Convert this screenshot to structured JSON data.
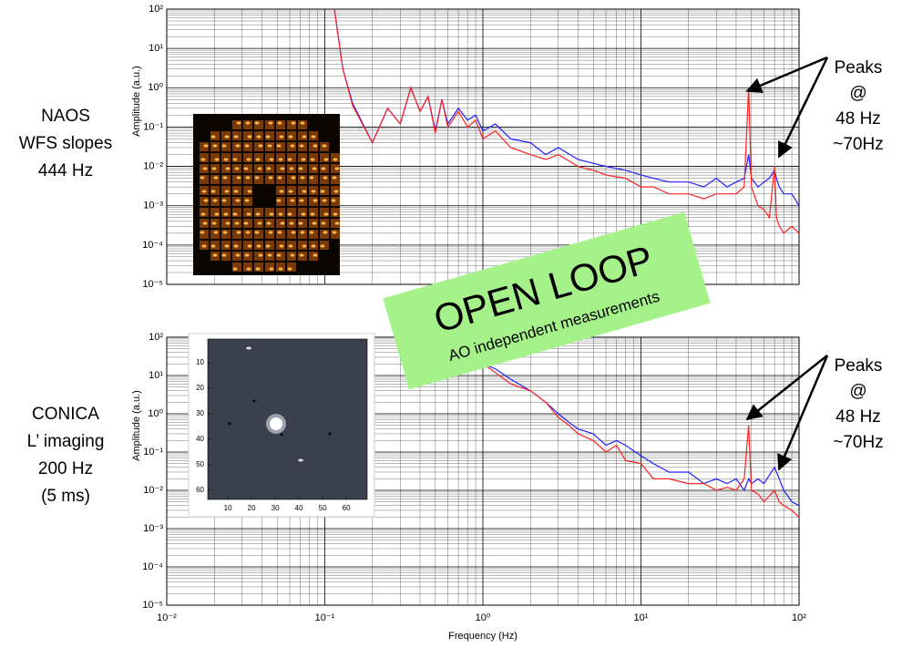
{
  "chart_data": [
    {
      "type": "line",
      "ylabel": "Amplitude (a.u.)",
      "log_x": true,
      "log_y": true,
      "grid": true,
      "xlim": [
        0.01,
        100
      ],
      "ylim": [
        1e-05,
        100
      ],
      "xticks": [
        0.01,
        0.1,
        1,
        10,
        100
      ],
      "yticks": [
        {
          "value": 100,
          "label": "10²"
        },
        {
          "value": 10,
          "label": "10¹"
        },
        {
          "value": 1,
          "label": "10⁰"
        },
        {
          "value": 0.1,
          "label": "10⁻¹"
        },
        {
          "value": 0.01,
          "label": "10⁻²"
        },
        {
          "value": 0.001,
          "label": "10⁻³"
        },
        {
          "value": 0.0001,
          "label": "10⁻⁴"
        },
        {
          "value": 1e-05,
          "label": "10⁻⁵"
        }
      ],
      "x": [
        0.115,
        0.13,
        0.15,
        0.2,
        0.25,
        0.3,
        0.35,
        0.4,
        0.45,
        0.5,
        0.55,
        0.6,
        0.7,
        0.8,
        0.9,
        1,
        1.2,
        1.5,
        2,
        2.5,
        3,
        4,
        5,
        6,
        8,
        10,
        12,
        15,
        20,
        25,
        30,
        35,
        40,
        45,
        48,
        50,
        55,
        60,
        65,
        70,
        72,
        75,
        80,
        90,
        100
      ],
      "series": [
        {
          "color": "#2020ff",
          "values": [
            100,
            3,
            0.4,
            0.04,
            0.3,
            0.12,
            1.0,
            0.25,
            0.6,
            0.08,
            0.5,
            0.12,
            0.3,
            0.15,
            0.2,
            0.08,
            0.12,
            0.05,
            0.04,
            0.02,
            0.03,
            0.015,
            0.012,
            0.01,
            0.008,
            0.006,
            0.005,
            0.004,
            0.004,
            0.003,
            0.005,
            0.003,
            0.004,
            0.005,
            0.02,
            0.005,
            0.003,
            0.004,
            0.005,
            0.008,
            0.005,
            0.003,
            0.002,
            0.002,
            0.001
          ]
        },
        {
          "color": "#ff2020",
          "values": [
            100,
            3,
            0.35,
            0.04,
            0.3,
            0.12,
            1.0,
            0.25,
            0.6,
            0.07,
            0.5,
            0.1,
            0.25,
            0.1,
            0.15,
            0.05,
            0.08,
            0.03,
            0.02,
            0.015,
            0.02,
            0.01,
            0.008,
            0.006,
            0.005,
            0.003,
            0.003,
            0.002,
            0.002,
            0.0015,
            0.002,
            0.002,
            0.002,
            0.003,
            1.0,
            0.003,
            0.001,
            0.0008,
            0.0005,
            0.01,
            0.0005,
            0.0003,
            0.0002,
            0.0003,
            0.0002
          ]
        }
      ],
      "side_label": [
        "NAOS",
        "WFS slopes",
        "444 Hz"
      ],
      "peak_note": [
        "Peaks",
        "@",
        "48 Hz",
        "~70Hz"
      ]
    },
    {
      "type": "line",
      "xlabel": "Frequency (Hz)",
      "ylabel": "Amplitude (a.u.)",
      "log_x": true,
      "log_y": true,
      "grid": true,
      "xlim": [
        0.01,
        100
      ],
      "ylim": [
        1e-05,
        100
      ],
      "xticks": [
        {
          "value": 0.01,
          "label": "10⁻²"
        },
        {
          "value": 0.1,
          "label": "10⁻¹"
        },
        {
          "value": 1,
          "label": "10⁰"
        },
        {
          "value": 10,
          "label": "10¹"
        },
        {
          "value": 100,
          "label": "10²"
        }
      ],
      "yticks": [
        {
          "value": 100,
          "label": "10²"
        },
        {
          "value": 10,
          "label": "10¹"
        },
        {
          "value": 1,
          "label": "10⁰"
        },
        {
          "value": 0.1,
          "label": "10⁻¹"
        },
        {
          "value": 0.01,
          "label": "10⁻²"
        },
        {
          "value": 0.001,
          "label": "10⁻³"
        },
        {
          "value": 0.0001,
          "label": "10⁻⁴"
        },
        {
          "value": 1e-05,
          "label": "10⁻⁵"
        }
      ],
      "x": [
        0.9,
        1,
        1.2,
        1.5,
        2,
        2.5,
        3,
        3.5,
        4,
        5,
        6,
        7,
        8,
        10,
        12,
        15,
        20,
        25,
        30,
        35,
        40,
        45,
        48,
        50,
        55,
        60,
        70,
        75,
        80,
        90,
        100
      ],
      "series": [
        {
          "color": "#2020ff",
          "values": [
            25,
            20,
            15,
            8,
            4,
            2,
            1,
            0.6,
            0.4,
            0.3,
            0.15,
            0.2,
            0.15,
            0.08,
            0.05,
            0.03,
            0.03,
            0.015,
            0.02,
            0.015,
            0.02,
            0.01,
            0.02,
            0.015,
            0.02,
            0.015,
            0.04,
            0.02,
            0.01,
            0.005,
            0.004
          ]
        },
        {
          "color": "#ff2020",
          "values": [
            25,
            20,
            12,
            6,
            4,
            2,
            0.8,
            0.5,
            0.3,
            0.2,
            0.1,
            0.15,
            0.06,
            0.05,
            0.02,
            0.02,
            0.015,
            0.015,
            0.01,
            0.012,
            0.01,
            0.02,
            0.5,
            0.01,
            0.008,
            0.005,
            0.01,
            0.005,
            0.004,
            0.003,
            0.002
          ]
        }
      ],
      "side_label": [
        "CONICA",
        "L’ imaging",
        "200 Hz",
        "(5 ms)"
      ],
      "peak_note": [
        "Peaks",
        "@",
        "48 Hz",
        "~70Hz"
      ],
      "inset": {
        "xlim": [
          1.5,
          68.8
        ],
        "ylim": [
          0.7,
          63.6
        ],
        "xticks": [
          10,
          20,
          30,
          40,
          50,
          60
        ],
        "yticks": [
          10,
          20,
          30,
          40,
          50,
          60
        ]
      }
    }
  ],
  "banner": {
    "title": "OPEN LOOP",
    "subtitle": "AO independent measurements"
  }
}
